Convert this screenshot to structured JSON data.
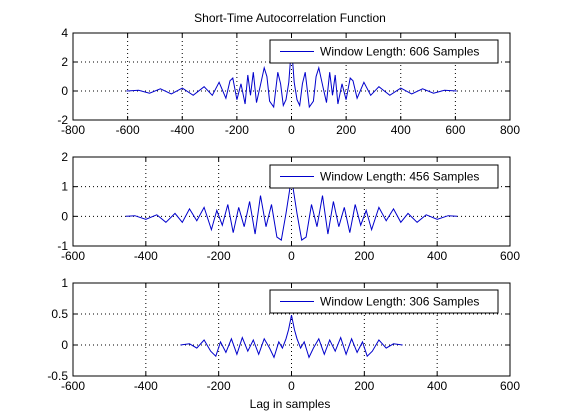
{
  "figure": {
    "title": "Short-Time Autocorrelation Function",
    "xlabel": "Lag in samples"
  },
  "colors": {
    "series": "#0000cc",
    "axes": "#000000",
    "grid": "#000000",
    "background": "#ffffff"
  },
  "chart_data": [
    {
      "type": "line",
      "title": "Short-Time Autocorrelation Function",
      "xlabel": "",
      "ylabel": "",
      "xlim": [
        -800,
        800
      ],
      "ylim": [
        -2,
        4
      ],
      "xticks": [
        -800,
        -600,
        -400,
        -200,
        0,
        200,
        400,
        600,
        800
      ],
      "yticks": [
        -2,
        0,
        2,
        4
      ],
      "xtick_labels": [
        "-800",
        "-600",
        "-400",
        "-200",
        "0",
        "200",
        "400",
        "600",
        "800"
      ],
      "ytick_labels": [
        "-2",
        "0",
        "2",
        "4"
      ],
      "grid": true,
      "legend_position": "top-right",
      "series": [
        {
          "name": "Window Length: 606 Samples",
          "x": [
            -605,
            -560,
            -520,
            -480,
            -440,
            -400,
            -360,
            -320,
            -290,
            -265,
            -240,
            -225,
            -215,
            -200,
            -185,
            -170,
            -160,
            -150,
            -140,
            -128,
            -115,
            -100,
            -90,
            -80,
            -65,
            -50,
            -40,
            -30,
            -20,
            -10,
            -5,
            0,
            5,
            10,
            20,
            30,
            40,
            50,
            65,
            80,
            90,
            100,
            115,
            128,
            140,
            150,
            160,
            170,
            185,
            200,
            215,
            225,
            240,
            265,
            290,
            320,
            360,
            400,
            440,
            480,
            520,
            560,
            605
          ],
          "y": [
            0,
            0.05,
            -0.15,
            0.15,
            -0.2,
            0.2,
            -0.3,
            0.3,
            -0.3,
            0.6,
            -0.5,
            0.7,
            0.9,
            -0.6,
            0.5,
            -0.9,
            1.1,
            -0.3,
            1.3,
            -0.8,
            0.3,
            1.6,
            1.0,
            -0.7,
            -1.1,
            1.3,
            0.5,
            -1.0,
            -0.6,
            0.6,
            1.8,
            3.0,
            1.8,
            0.6,
            -0.6,
            -1.0,
            0.5,
            1.3,
            -1.1,
            -0.7,
            1.0,
            1.6,
            0.3,
            -0.8,
            1.3,
            -0.3,
            1.1,
            -0.9,
            0.5,
            -0.6,
            0.9,
            0.7,
            -0.5,
            0.6,
            -0.3,
            0.3,
            -0.3,
            0.2,
            -0.2,
            0.15,
            -0.15,
            0.05,
            0
          ]
        }
      ]
    },
    {
      "type": "line",
      "title": "",
      "xlabel": "",
      "ylabel": "",
      "xlim": [
        -600,
        600
      ],
      "ylim": [
        -1,
        2
      ],
      "xticks": [
        -600,
        -400,
        -200,
        0,
        200,
        400,
        600
      ],
      "yticks": [
        -1,
        0,
        1,
        2
      ],
      "xtick_labels": [
        "-600",
        "-400",
        "-200",
        "0",
        "200",
        "400",
        "600"
      ],
      "ytick_labels": [
        "-1",
        "0",
        "1",
        "2"
      ],
      "grid": true,
      "legend_position": "top-right",
      "series": [
        {
          "name": "Window Length: 456 Samples",
          "x": [
            -455,
            -430,
            -400,
            -370,
            -345,
            -320,
            -300,
            -280,
            -260,
            -240,
            -220,
            -205,
            -190,
            -175,
            -160,
            -145,
            -130,
            -115,
            -100,
            -85,
            -70,
            -55,
            -40,
            -28,
            -15,
            -5,
            0,
            5,
            15,
            28,
            40,
            55,
            70,
            85,
            100,
            115,
            130,
            145,
            160,
            175,
            190,
            205,
            220,
            240,
            260,
            280,
            300,
            320,
            345,
            370,
            400,
            430,
            455
          ],
          "y": [
            0,
            0.02,
            -0.1,
            0.05,
            -0.2,
            0.1,
            -0.2,
            0.25,
            -0.15,
            0.3,
            -0.45,
            0.2,
            -0.3,
            0.4,
            -0.55,
            0.3,
            -0.35,
            0.5,
            -0.6,
            0.7,
            -0.35,
            0.4,
            -0.7,
            -0.8,
            0.1,
            0.9,
            1.7,
            0.9,
            0.1,
            -0.8,
            -0.7,
            0.4,
            -0.35,
            0.7,
            -0.6,
            0.5,
            -0.35,
            0.3,
            -0.55,
            0.4,
            -0.3,
            0.2,
            -0.45,
            0.3,
            -0.15,
            0.25,
            -0.2,
            0.1,
            -0.2,
            0.05,
            -0.1,
            0.02,
            0
          ]
        }
      ]
    },
    {
      "type": "line",
      "title": "",
      "xlabel": "Lag in samples",
      "ylabel": "",
      "xlim": [
        -600,
        600
      ],
      "ylim": [
        -0.5,
        1
      ],
      "xticks": [
        -600,
        -400,
        -200,
        0,
        200,
        400,
        600
      ],
      "yticks": [
        -0.5,
        0,
        0.5,
        1
      ],
      "xtick_labels": [
        "-600",
        "-400",
        "-200",
        "0",
        "200",
        "400",
        "600"
      ],
      "ytick_labels": [
        "-0.5",
        "0",
        "0.5",
        "1"
      ],
      "grid": true,
      "legend_position": "top-right",
      "series": [
        {
          "name": "Window Length: 306 Samples",
          "x": [
            -305,
            -280,
            -260,
            -240,
            -222,
            -208,
            -195,
            -180,
            -165,
            -150,
            -135,
            -120,
            -105,
            -90,
            -75,
            -60,
            -48,
            -35,
            -25,
            -15,
            -8,
            0,
            8,
            15,
            25,
            35,
            48,
            60,
            75,
            90,
            105,
            120,
            135,
            150,
            165,
            180,
            195,
            208,
            222,
            240,
            260,
            280,
            305
          ],
          "y": [
            0,
            0.02,
            -0.05,
            0.08,
            -0.1,
            -0.18,
            0.05,
            -0.12,
            0.1,
            -0.15,
            0.12,
            -0.1,
            0.08,
            -0.15,
            0.1,
            -0.05,
            -0.2,
            0.05,
            -0.05,
            0.1,
            0.25,
            0.48,
            0.25,
            0.1,
            -0.05,
            0.05,
            -0.2,
            -0.05,
            0.1,
            -0.15,
            0.08,
            -0.1,
            0.12,
            -0.15,
            0.1,
            -0.12,
            0.05,
            -0.18,
            -0.1,
            0.08,
            -0.05,
            0.02,
            0
          ]
        }
      ]
    }
  ]
}
